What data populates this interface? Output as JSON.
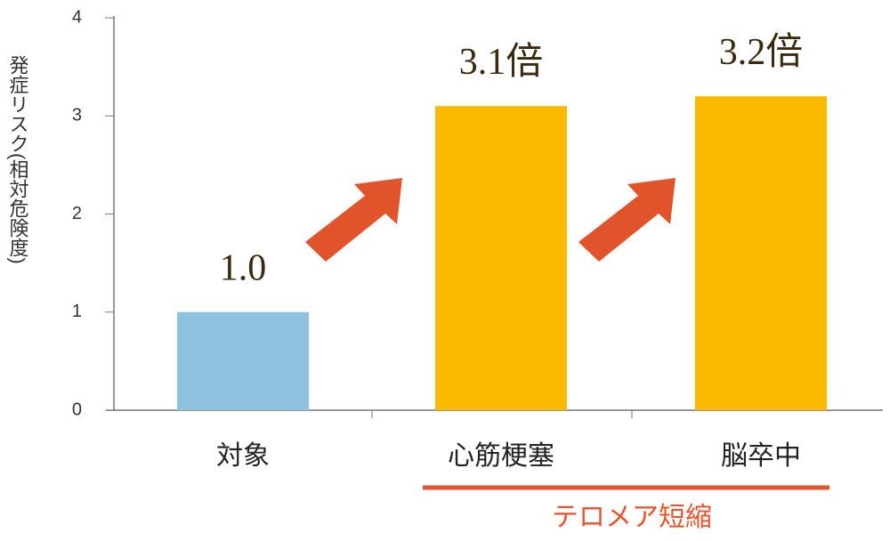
{
  "chart_data": {
    "type": "bar",
    "y_label": "発症リスク(相対危険度)",
    "categories": [
      "対象",
      "心筋梗塞",
      "脳卒中"
    ],
    "values": [
      1.0,
      3.1,
      3.2
    ],
    "value_labels": [
      "1.0",
      "3.1倍",
      "3.2倍"
    ],
    "colors": [
      "#8fc1e0",
      "#fbb900",
      "#fbb900"
    ],
    "ylim": [
      0,
      4
    ],
    "yticks": [
      0,
      1,
      2,
      3,
      4
    ],
    "annotation": "テロメア短縮",
    "annotation_color": "#e8542e"
  }
}
